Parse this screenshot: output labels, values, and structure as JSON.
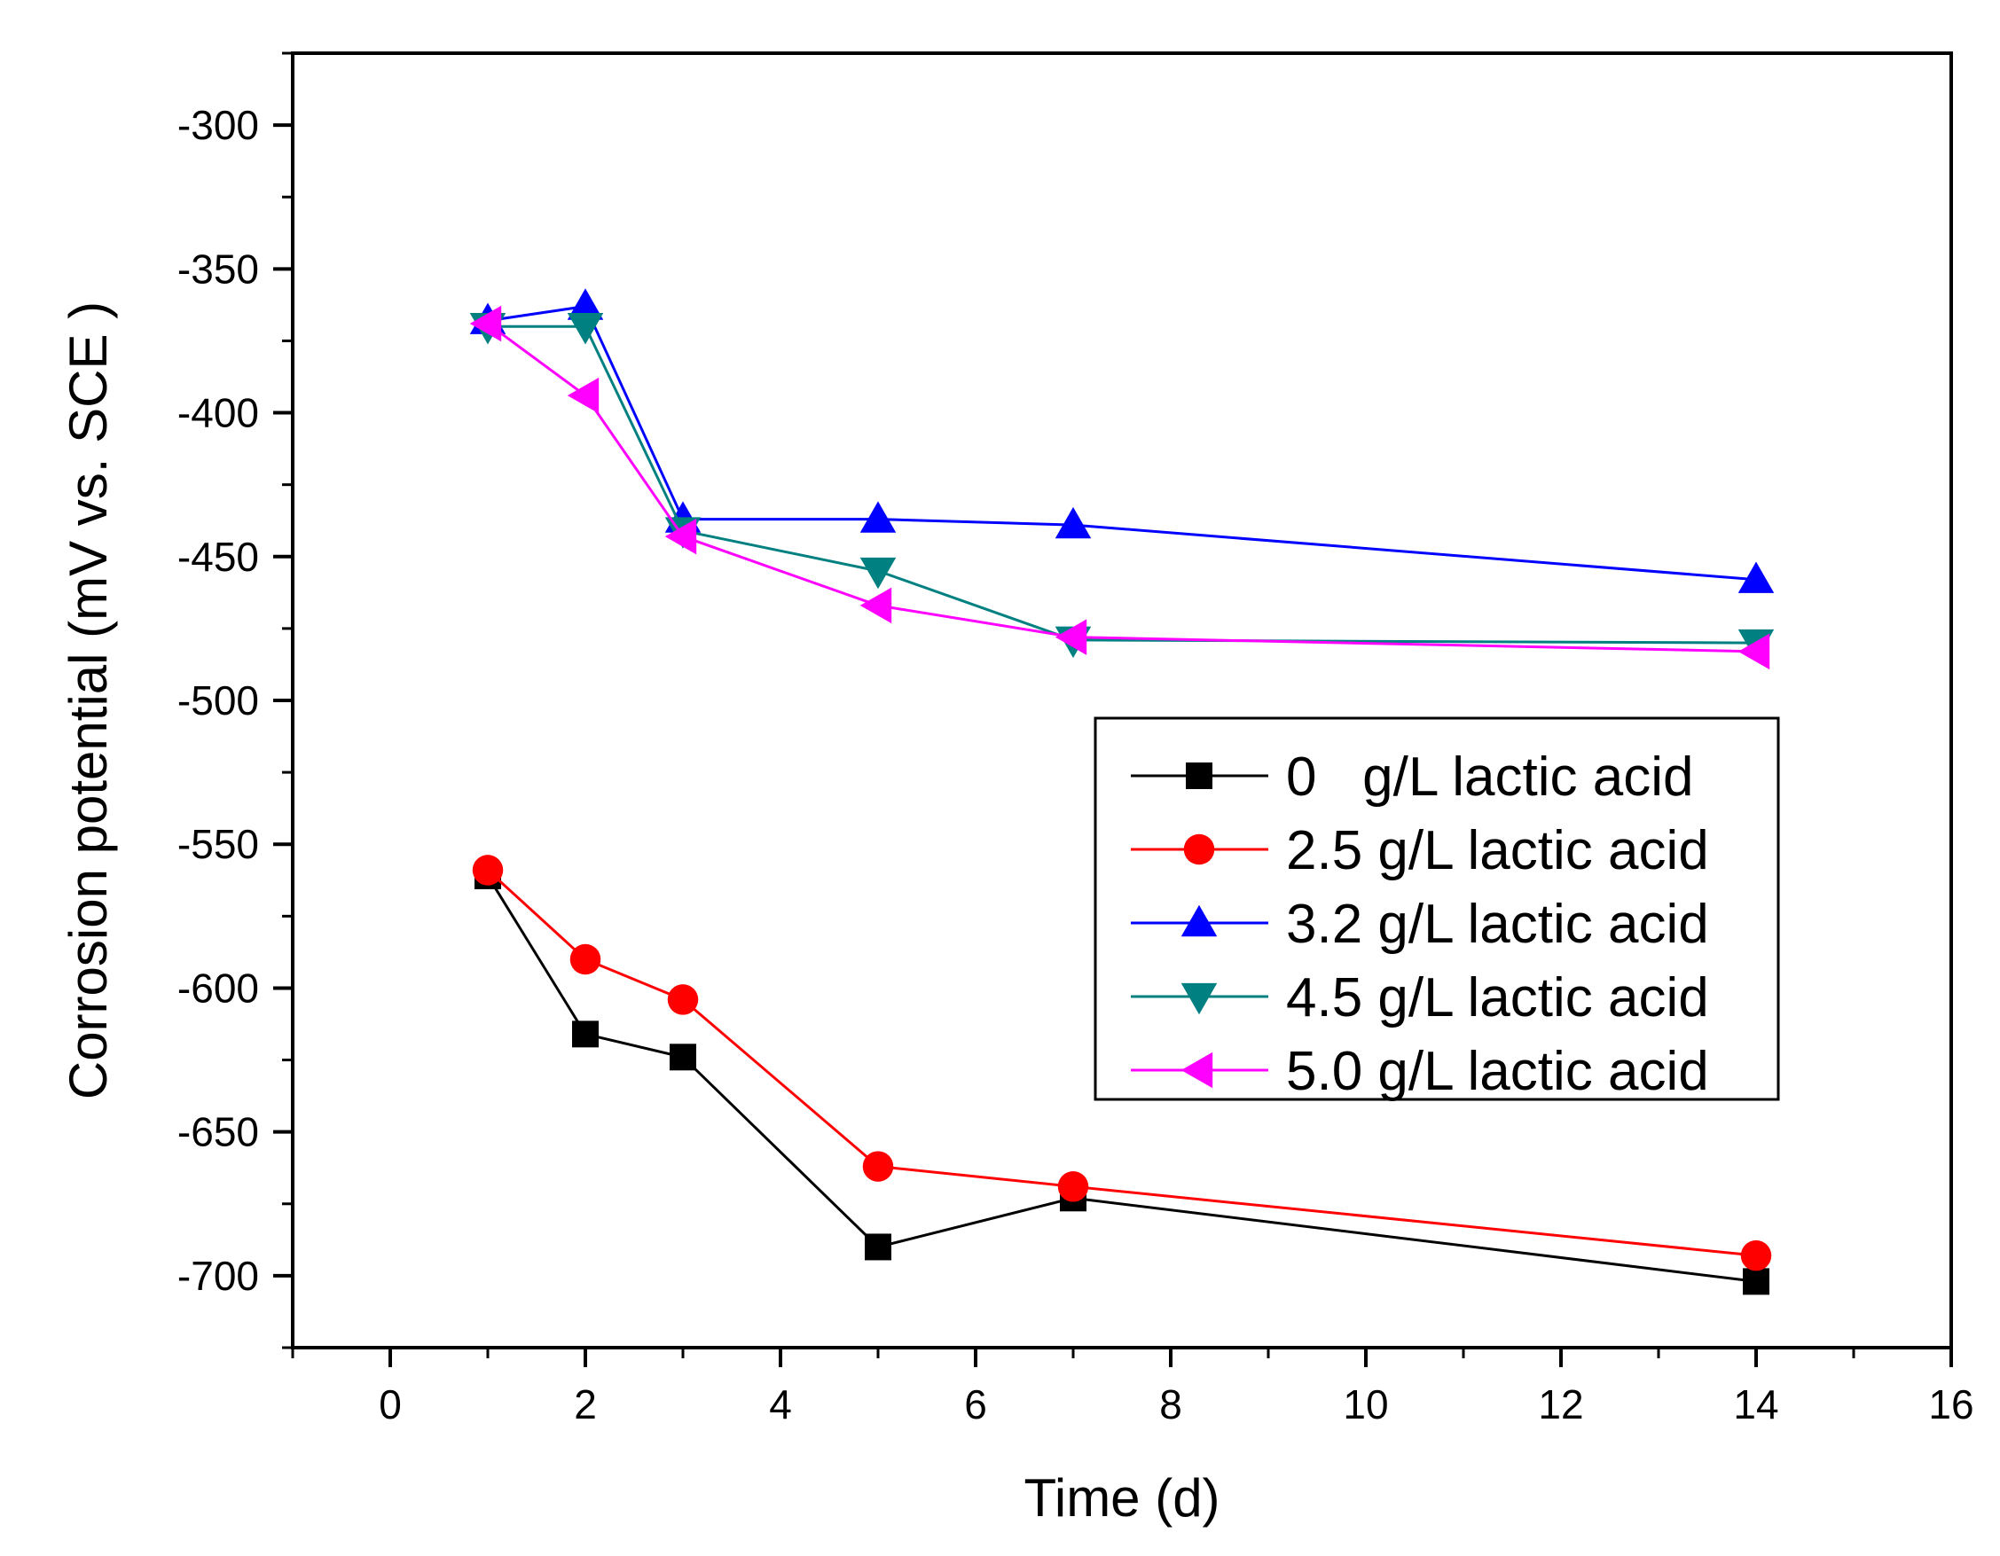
{
  "chart_data": {
    "type": "line",
    "xlabel": "Time (d)",
    "ylabel": "Corrosion potential (mV vs. SCE )",
    "xlim": [
      -1,
      16
    ],
    "ylim": [
      -725,
      -275
    ],
    "x_ticks": [
      0,
      2,
      4,
      6,
      8,
      10,
      12,
      14,
      16
    ],
    "y_ticks": [
      -300,
      -350,
      -400,
      -450,
      -500,
      -550,
      -600,
      -650,
      -700
    ],
    "x_tick_labels": [
      "0",
      "2",
      "4",
      "6",
      "8",
      "10",
      "12",
      "14",
      "16"
    ],
    "y_tick_labels": [
      "-300",
      "-350",
      "-400",
      "-450",
      "-500",
      "-550",
      "-600",
      "-650",
      "-700"
    ],
    "grid": false,
    "legend_position": "center-right",
    "x": [
      1,
      2,
      3,
      5,
      7,
      14
    ],
    "series": [
      {
        "name": "0   g/L lactic acid",
        "color": "#000000",
        "marker": "square",
        "values": [
          -561,
          -616,
          -624,
          -690,
          -673,
          -702
        ]
      },
      {
        "name": "2.5 g/L lactic acid",
        "color": "#ff0000",
        "marker": "circle",
        "values": [
          -559,
          -590,
          -604,
          -662,
          -669,
          -693
        ]
      },
      {
        "name": "3.2 g/L lactic acid",
        "color": "#0000ff",
        "marker": "triangle-up",
        "values": [
          -368,
          -363,
          -437,
          -437,
          -439,
          -458
        ]
      },
      {
        "name": "4.5 g/L lactic acid",
        "color": "#008080",
        "marker": "triangle-down",
        "values": [
          -370,
          -370,
          -441,
          -455,
          -479,
          -480
        ]
      },
      {
        "name": "5.0 g/L lactic acid",
        "color": "#ff00ff",
        "marker": "triangle-left",
        "values": [
          -369,
          -394,
          -443,
          -467,
          -478,
          -483
        ]
      }
    ]
  }
}
